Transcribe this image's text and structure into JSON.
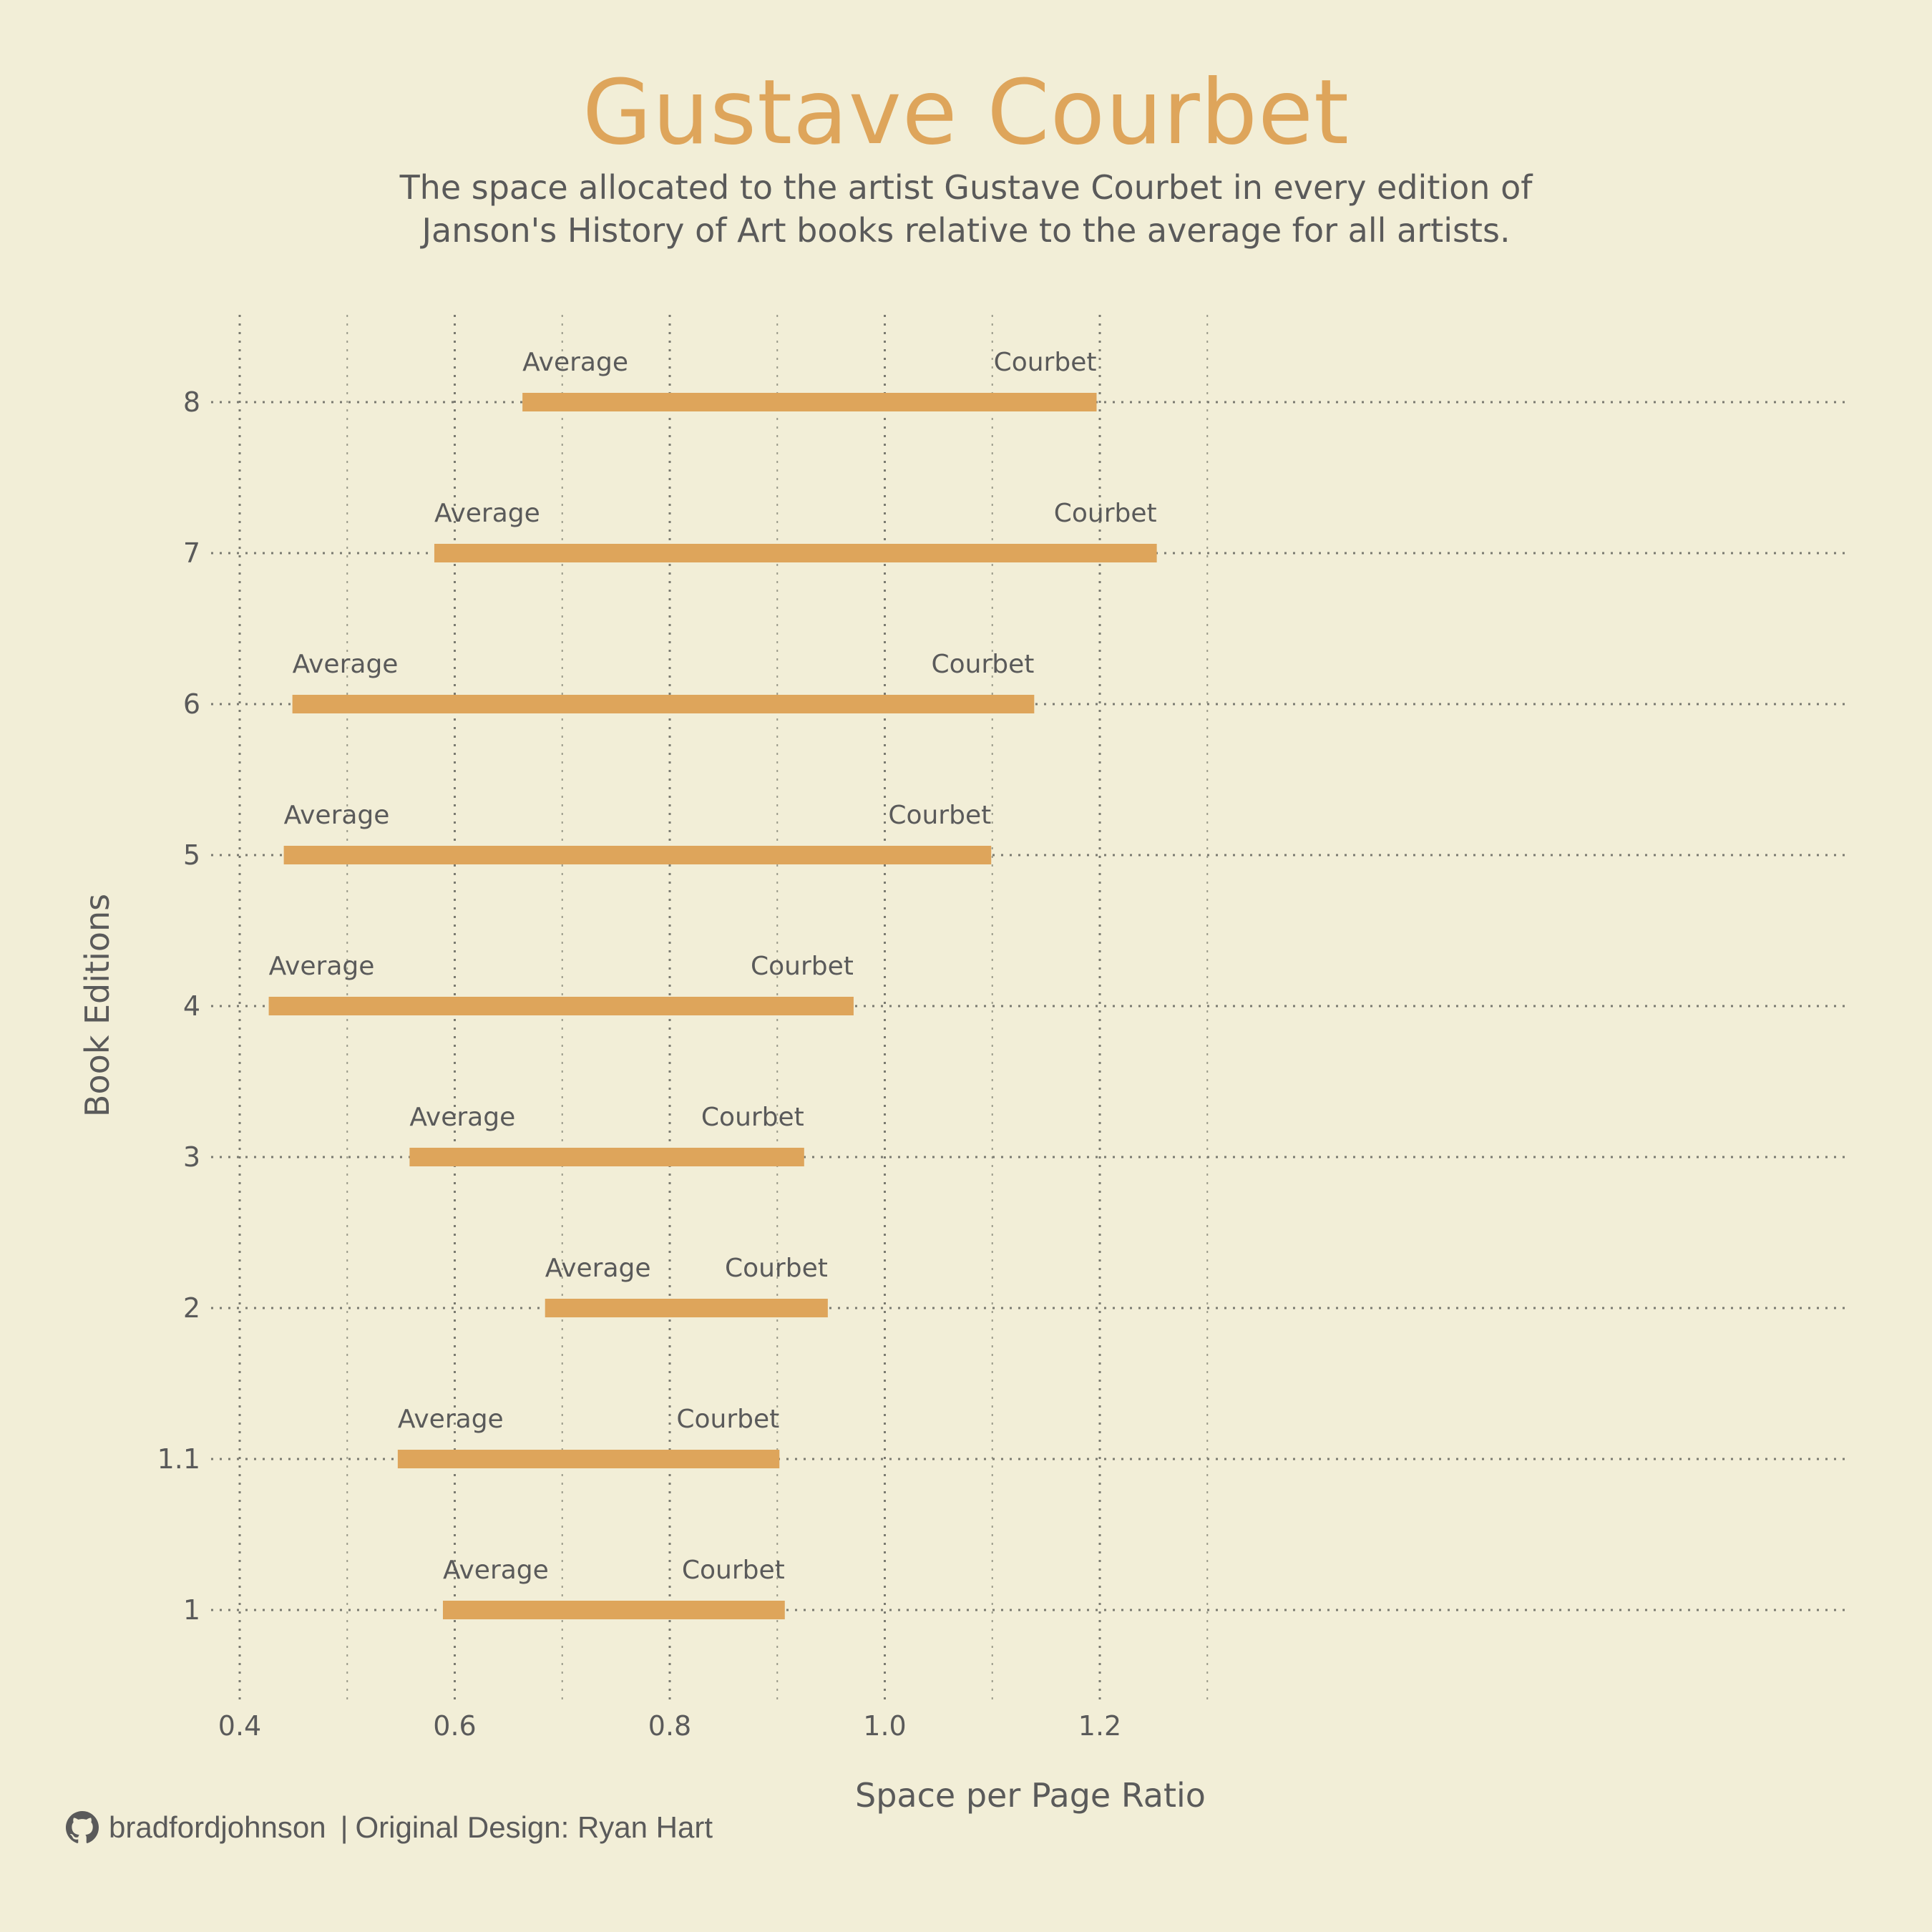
{
  "header": {
    "title": "Gustave Courbet",
    "subtitle_line1": "The space allocated to the artist Gustave Courbet in every edition of",
    "subtitle_line2": "Janson's History of Art books relative to the average for all artists."
  },
  "footer": {
    "icon": "github-icon",
    "handle": "bradfordjohnson",
    "separator": "|",
    "credit": "Original Design: Ryan Hart"
  },
  "colors": {
    "background": "#f2eed7",
    "accent": "#dea55b",
    "text": "#5a5a5a"
  },
  "chart_data": {
    "type": "dumbbell-bar",
    "title": "Gustave Courbet",
    "subtitle": "The space allocated to the artist Gustave Courbet in every edition of Janson's History of Art books relative to the average for all artists.",
    "xlabel": "Space per Page Ratio",
    "ylabel": "Book Editions",
    "xlim": [
      0.4,
      1.3
    ],
    "xticks": [
      "0.4",
      "0.6",
      "0.8",
      "1.0",
      "1.2"
    ],
    "grid": true,
    "start_label": "Average",
    "end_label": "Courbet",
    "categories": [
      "1",
      "1.1",
      "2",
      "3",
      "4",
      "5",
      "6",
      "7",
      "8"
    ],
    "series": [
      {
        "name": "Average",
        "values": [
          0.589,
          0.547,
          0.684,
          0.558,
          0.427,
          0.441,
          0.449,
          0.581,
          0.663
        ]
      },
      {
        "name": "Courbet",
        "values": [
          0.907,
          0.902,
          0.947,
          0.925,
          0.971,
          1.099,
          1.139,
          1.253,
          1.197
        ]
      }
    ]
  }
}
